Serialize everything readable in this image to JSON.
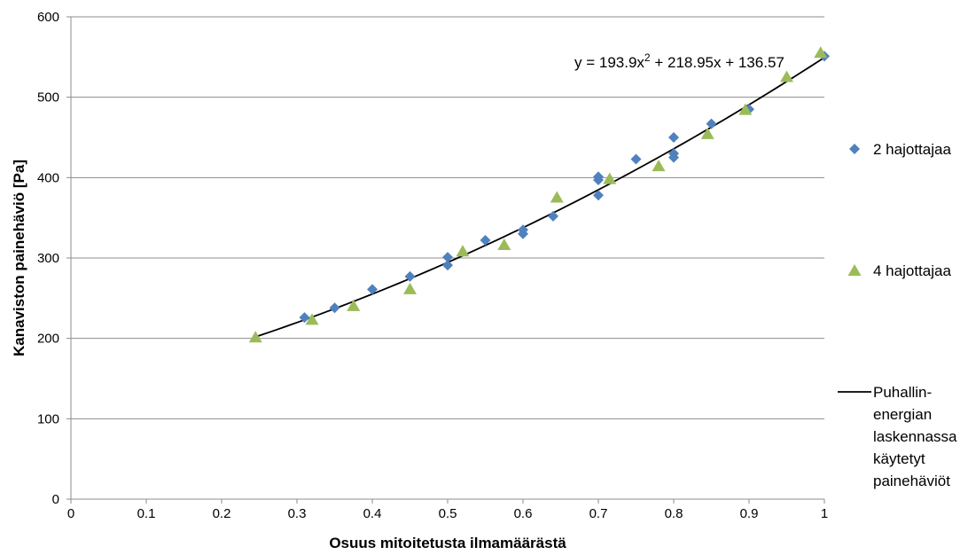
{
  "chart_data": {
    "type": "scatter",
    "xlabel": "Osuus mitoitetusta ilmamäärästä",
    "ylabel": "Kanaviston painehäviö [Pa]",
    "xlim": [
      0,
      1
    ],
    "ylim": [
      0,
      600
    ],
    "xticks": [
      0,
      0.1,
      0.2,
      0.3,
      0.4,
      0.5,
      0.6,
      0.7,
      0.8,
      0.9,
      1
    ],
    "xtick_labels": [
      "0",
      "0.1",
      "0.2",
      "0.3",
      "0.4",
      "0.5",
      "0.6",
      "0.7",
      "0.8",
      "0.9",
      "1"
    ],
    "yticks": [
      0,
      100,
      200,
      300,
      400,
      500,
      600
    ],
    "ytick_labels": [
      "0",
      "100",
      "200",
      "300",
      "400",
      "500",
      "600"
    ],
    "grid": "horizontal",
    "legend_position": "right",
    "equation": {
      "prefix": "y = 193.9x",
      "exponent": "2",
      "suffix": " + 218.95x + 136.57"
    },
    "series": [
      {
        "name": "2 hajottajaa",
        "marker": "diamond",
        "color": "#4f81bd",
        "x": [
          0.31,
          0.35,
          0.4,
          0.45,
          0.5,
          0.5,
          0.55,
          0.6,
          0.6,
          0.64,
          0.7,
          0.7,
          0.7,
          0.75,
          0.8,
          0.8,
          0.8,
          0.85,
          0.9,
          1.0
        ],
        "y": [
          226,
          238,
          261,
          277,
          301,
          291,
          322,
          335,
          330,
          352,
          401,
          397,
          378,
          423,
          450,
          430,
          425,
          467,
          485,
          551
        ]
      },
      {
        "name": "4 hajottajaa",
        "marker": "triangle",
        "color": "#9bbb59",
        "x": [
          0.245,
          0.32,
          0.375,
          0.45,
          0.52,
          0.575,
          0.645,
          0.715,
          0.78,
          0.845,
          0.895,
          0.95,
          0.995
        ],
        "y": [
          201,
          223,
          240,
          261,
          308,
          316,
          375,
          398,
          414,
          454,
          484,
          525,
          555
        ]
      },
      {
        "name": "Puhallin-energian laskennassa käytetyt painehäviöt",
        "legend_lines": [
          "Puhallin-",
          "energian",
          "laskennassa",
          "käytetyt",
          "painehäviöt"
        ],
        "marker": "line",
        "color": "#000000",
        "fit": {
          "a": 193.9,
          "b": 218.95,
          "c": 136.57,
          "x_from": 0.245,
          "x_to": 1.0
        }
      }
    ]
  }
}
